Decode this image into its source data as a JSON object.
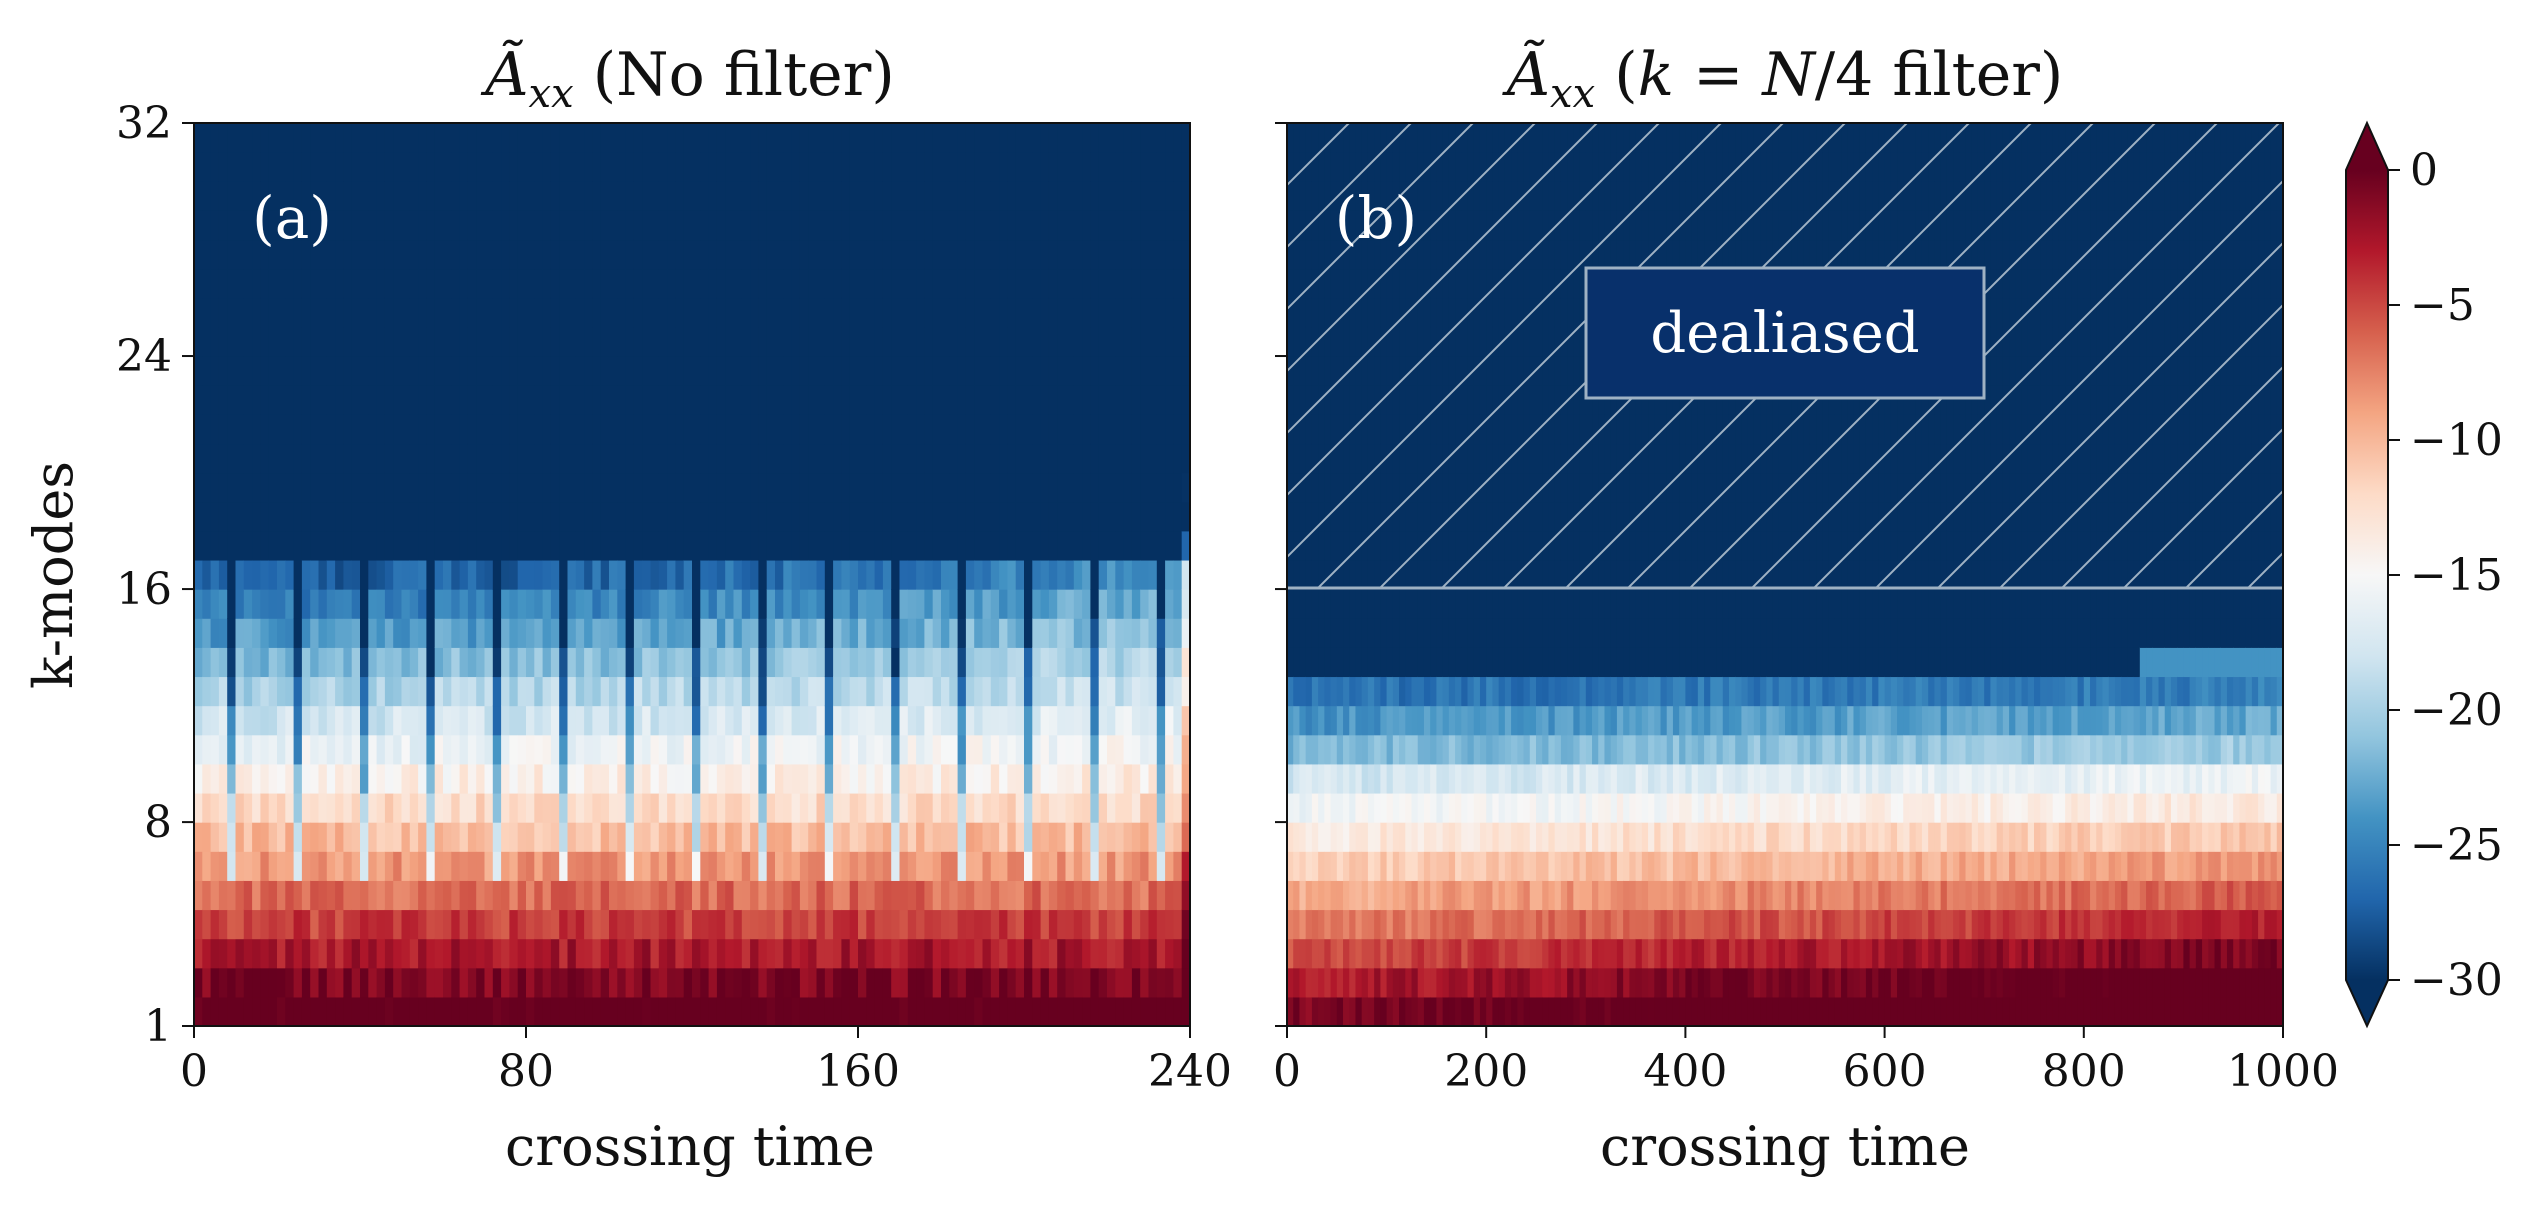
{
  "chart_data": [
    {
      "panel": "(a)",
      "type": "heatmap",
      "title": "Ã_xx (No filter)",
      "xlabel": "crossing time",
      "ylabel": "k-modes",
      "xlim": [
        0,
        240
      ],
      "ylim": [
        1,
        32
      ],
      "xticks": [
        "0",
        "80",
        "160",
        "240"
      ],
      "yticks": [
        "1",
        "8",
        "16",
        "24",
        "32"
      ],
      "x_cells": 120,
      "y_modes": 31,
      "spike_period": 16,
      "color_range": [
        -30,
        0
      ],
      "annotation": "(a)"
    },
    {
      "panel": "(b)",
      "type": "heatmap",
      "title": "Ã_xx (k = N/4 filter)",
      "xlabel": "crossing time",
      "ylabel": "",
      "xlim": [
        0,
        1000
      ],
      "ylim": [
        1,
        32
      ],
      "xticks": [
        "0",
        "200",
        "400",
        "600",
        "800",
        "1000"
      ],
      "yticks": [
        "1",
        "8",
        "16",
        "24",
        "32"
      ],
      "x_cells": 160,
      "y_modes": 31,
      "dealiased_above_k": 16,
      "color_range": [
        -30,
        0
      ],
      "annotation": "(b)",
      "box_label": "dealiased"
    }
  ],
  "colorbar": {
    "colormap": "RdBu_r",
    "min": -30,
    "max": 0,
    "ticks": [
      "0",
      "−5",
      "−10",
      "−15",
      "−20",
      "−25",
      "−30"
    ],
    "tick_values": [
      0,
      -5,
      -10,
      -15,
      -20,
      -25,
      -30
    ],
    "extend": "both"
  }
}
